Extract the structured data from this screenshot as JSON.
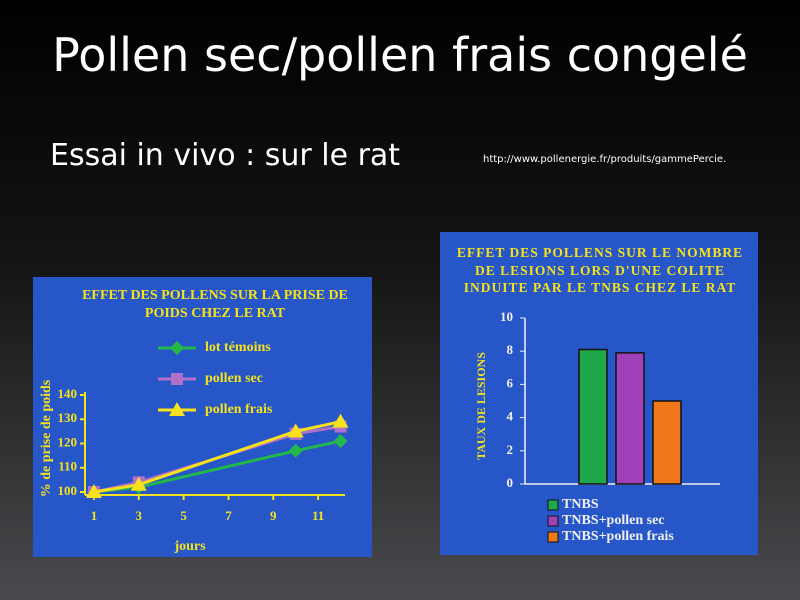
{
  "slide": {
    "title": "Pollen sec/pollen frais congelé",
    "subtitle": "Essai in vivo : sur le rat",
    "url": "http://www.pollenergie.fr/produits/gammePercie."
  },
  "chart_data": [
    {
      "type": "line",
      "title": "EFFET DES POLLENS SUR LA PRISE DE POIDS CHEZ LE RAT",
      "x_label": "jours",
      "y_label": "% de prise de poids",
      "x": [
        1,
        3,
        10,
        12
      ],
      "series": [
        {
          "name": "lot témoins",
          "color": "#22b84a",
          "marker": "diamond",
          "values": [
            100,
            102,
            117,
            121
          ]
        },
        {
          "name": "pollen sec",
          "color": "#b070c8",
          "marker": "square",
          "values": [
            100,
            104,
            124,
            127
          ]
        },
        {
          "name": "pollen frais",
          "color": "#f6e21c",
          "marker": "triangle",
          "values": [
            100,
            103,
            125,
            129
          ]
        }
      ],
      "xlim": [
        0.6,
        12.2
      ],
      "xticks": [
        1,
        3,
        5,
        7,
        9,
        11
      ],
      "ylim": [
        100,
        140
      ],
      "yticks": [
        100,
        110,
        120,
        130,
        140
      ]
    },
    {
      "type": "bar",
      "title": "EFFET DES POLLENS SUR LE NOMBRE DE LESIONS LORS D'UNE COLITE INDUITE PAR LE TNBS CHEZ LE RAT",
      "y_label": "TAUX DE LESIONS",
      "categories": [
        null
      ],
      "series": [
        {
          "name": "TNBS",
          "color": "#1fa84a",
          "values": [
            8.1
          ]
        },
        {
          "name": "TNBS+pollen sec",
          "color": "#a040b8",
          "values": [
            7.9
          ]
        },
        {
          "name": "TNBS+pollen frais",
          "color": "#f07818",
          "values": [
            5.0
          ]
        }
      ],
      "ylim": [
        0,
        10
      ],
      "yticks": [
        0,
        2,
        4,
        6,
        8,
        10
      ]
    }
  ]
}
